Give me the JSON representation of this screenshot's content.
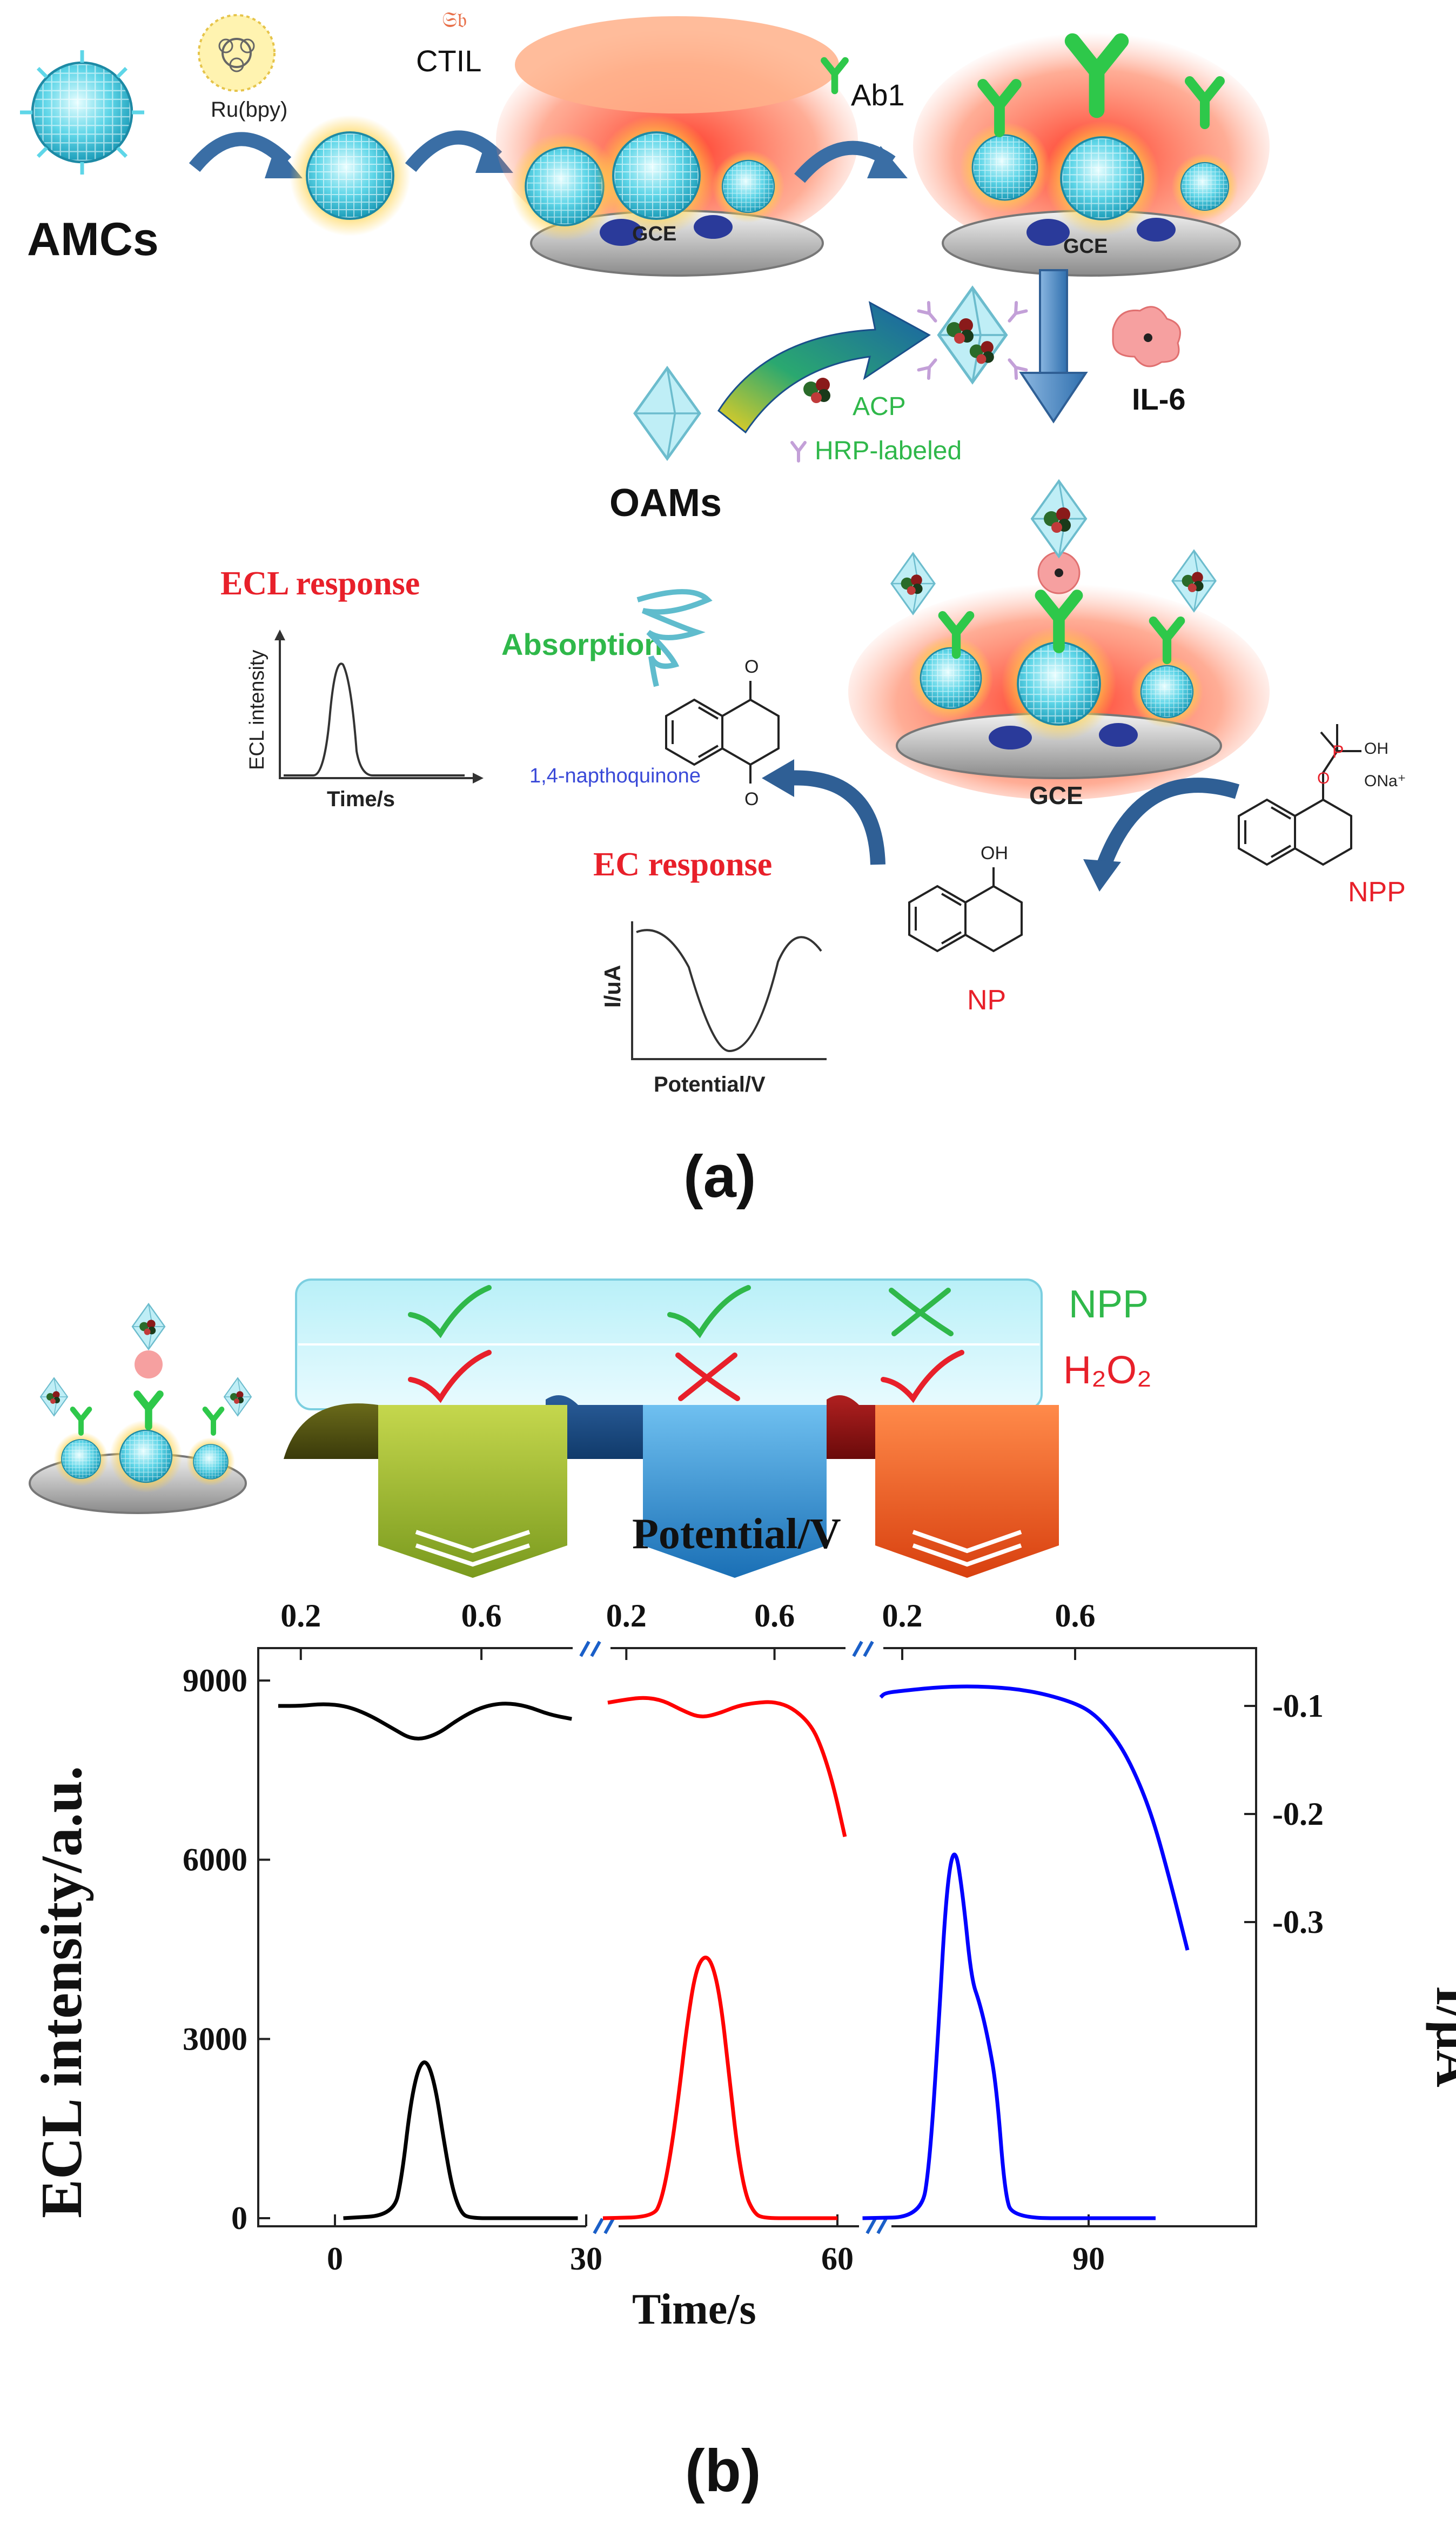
{
  "panel_a": {
    "panel_label": "(a)",
    "amcs_label": "AMCs",
    "ru_label": "Ru(bpy)",
    "ctil_label": "CTIL",
    "ab1_label": "Ab1",
    "gce_label": "GCE",
    "il6_label": "IL-6",
    "oams_label": "OAMs",
    "acp_label": "ACP",
    "hrp_label": "HRP-labeled",
    "ecl_response_title": "ECL response",
    "ecl_ylabel": "ECL intensity",
    "ecl_xlabel": "Time/s",
    "absorption_label": "Absorption",
    "naphthoquinone_label": "1,4-napthoquinone",
    "ec_response_title": "EC response",
    "ec_ylabel": "I/uA",
    "ec_xlabel": "Potential/V",
    "np_label": "NP",
    "npp_label": "NPP",
    "oh_label": "OH",
    "ona_label": "ONa⁺",
    "o_label": "O",
    "p_label": "P"
  },
  "panel_b": {
    "panel_label": "(b)",
    "legend": {
      "row1_label": "NPP",
      "row2_label": "H₂O₂",
      "row1_marks": [
        "check",
        "check",
        "cross"
      ],
      "row2_marks": [
        "check",
        "cross",
        "check"
      ],
      "row1_color": "#2fb84a",
      "row2_color": "#e8202a"
    },
    "banner_colors": [
      "#9ab52c",
      "#2a8fd8",
      "#f0561e"
    ],
    "colors": {
      "black": "#000000",
      "red": "#ff0000",
      "blue": "#0000ff"
    }
  },
  "chart_data": {
    "type": "line",
    "xlabel": "Time/s",
    "ylabel": "ECL intensity/a.u.",
    "y2label": "I/μA",
    "top_label": "Potential/V",
    "x_ticks": [
      "0",
      "30",
      "60",
      "90"
    ],
    "y_ticks": [
      "0",
      "3000",
      "6000",
      "9000"
    ],
    "y2_ticks": [
      "-0.1",
      "-0.2",
      "-0.3"
    ],
    "top_ticks": [
      "0.2",
      "0.6",
      "0.2",
      "0.6",
      "0.2",
      "0.6"
    ],
    "ylim": [
      0,
      9000
    ],
    "y2lim": [
      -0.05,
      -0.35
    ],
    "series": [
      {
        "color": "#000000",
        "x": [
          1,
          7,
          8,
          9,
          10,
          11,
          12,
          13,
          14,
          15,
          16,
          20,
          29
        ],
        "y": [
          0,
          50,
          700,
          1900,
          2550,
          2650,
          2200,
          1300,
          500,
          100,
          0,
          0,
          0
        ]
      },
      {
        "color": "#ff0000",
        "x": [
          32,
          38,
          39,
          40,
          41,
          42,
          43,
          44,
          45,
          46,
          47,
          48,
          49,
          50,
          51,
          55,
          60
        ],
        "y": [
          0,
          20,
          300,
          1000,
          2000,
          3200,
          4100,
          4400,
          4300,
          3700,
          2500,
          1200,
          400,
          100,
          0,
          0,
          0
        ]
      },
      {
        "color": "#0000ff",
        "x": [
          63,
          70,
          71,
          72,
          73,
          74,
          75,
          76,
          77,
          78,
          79,
          80,
          81,
          90,
          98
        ],
        "y": [
          0,
          20,
          900,
          3000,
          5500,
          6300,
          5400,
          4000,
          3600,
          3000,
          2200,
          400,
          0,
          0,
          0
        ]
      },
      {
        "color": "#000000",
        "x": [
          0.15,
          0.2,
          0.25,
          0.3,
          0.35,
          0.4,
          0.45,
          0.5,
          0.55,
          0.6,
          0.65,
          0.7,
          0.75,
          0.8
        ],
        "y": [
          -0.1,
          -0.1,
          -0.098,
          -0.1,
          -0.108,
          -0.12,
          -0.132,
          -0.127,
          -0.112,
          -0.101,
          -0.097,
          -0.1,
          -0.108,
          -0.112
        ]
      },
      {
        "color": "#ff0000",
        "x": [
          0.15,
          0.2,
          0.25,
          0.3,
          0.35,
          0.4,
          0.45,
          0.5,
          0.55,
          0.6,
          0.65,
          0.7,
          0.73,
          0.76,
          0.79
        ],
        "y": [
          -0.097,
          -0.094,
          -0.092,
          -0.095,
          -0.104,
          -0.111,
          -0.107,
          -0.1,
          -0.097,
          -0.096,
          -0.102,
          -0.118,
          -0.141,
          -0.175,
          -0.221
        ]
      },
      {
        "color": "#0000ff",
        "x": [
          0.15,
          0.16,
          0.2,
          0.3,
          0.4,
          0.5,
          0.6,
          0.65,
          0.7,
          0.74,
          0.78,
          0.82,
          0.86
        ],
        "y": [
          -0.092,
          -0.088,
          -0.086,
          -0.082,
          -0.082,
          -0.086,
          -0.097,
          -0.109,
          -0.133,
          -0.163,
          -0.204,
          -0.262,
          -0.326
        ]
      }
    ]
  }
}
